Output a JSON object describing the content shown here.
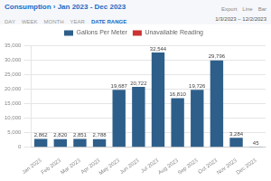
{
  "chart_data": {
    "type": "bar",
    "title": "Consumption › Jan 2023 - Dec 2023",
    "subtitle": "1/3/2023 – 12/2/2023",
    "annotations": [
      "Export",
      "Line",
      "Bar",
      "DAY",
      "WEEK",
      "MONTH",
      "YEAR",
      "DATE RANGE"
    ],
    "categories": [
      "Jan 2023",
      "Feb 2023",
      "Mar 2023",
      "Apr 2023",
      "May 2023",
      "Jun 2023",
      "Jul 2023",
      "Aug 2023",
      "Sep 2023",
      "Oct 2023",
      "Nov 2023",
      "Dec 2023"
    ],
    "series": [
      {
        "name": "Gallons Per Meter",
        "color": "#2e5f8a",
        "values": [
          2862,
          2820,
          2851,
          2788,
          19687,
          20722,
          32544,
          16810,
          19726,
          29796,
          3284,
          45
        ],
        "value_labels": [
          "2,862",
          "2,820",
          "2,851",
          "2,788",
          "19,687",
          "20,722",
          "32,544",
          "16,810",
          "19,726",
          "29,796",
          "3,284",
          "45"
        ]
      },
      {
        "name": "Unavailable Reading",
        "color": "#cc3333",
        "values": [
          null,
          null,
          null,
          null,
          null,
          null,
          null,
          null,
          null,
          null,
          null,
          null
        ]
      }
    ],
    "ylim": [
      0,
      35000
    ],
    "yticks": [
      0,
      {
        "value": 5000,
        "label": "5,000"
      },
      {
        "value": 10000,
        "label": "10,000"
      },
      {
        "value": 15000,
        "label": "15,000"
      },
      {
        "value": 20000,
        "label": "20,000"
      },
      {
        "value": 25000,
        "label": "25,000"
      },
      {
        "value": 30000,
        "label": "30,000"
      },
      {
        "value": 35000,
        "label": "35,000"
      }
    ],
    "grid": true,
    "legend": "top",
    "data_labels": true
  }
}
